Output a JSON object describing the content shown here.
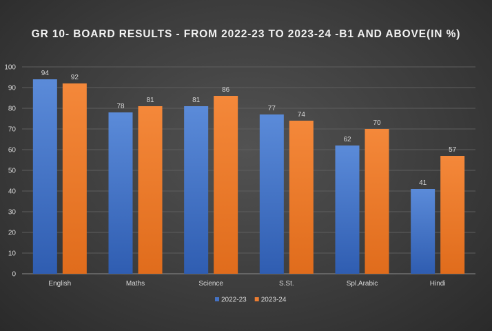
{
  "chart_data": {
    "type": "bar",
    "title": "GR 10- BOARD RESULTS - FROM 2022-23 TO 2023-24 -B1 AND ABOVE(IN %)",
    "categories": [
      "English",
      "Maths",
      "Science",
      "S.St.",
      "Spl.Arabic",
      "Hindi"
    ],
    "series": [
      {
        "name": "2022-23",
        "values": [
          94,
          78,
          81,
          77,
          62,
          41
        ],
        "color": "#4472c4"
      },
      {
        "name": "2023-24",
        "values": [
          92,
          81,
          86,
          74,
          70,
          57
        ],
        "color": "#ed7d31"
      }
    ],
    "ylim": [
      0,
      100
    ],
    "yticks": [
      0,
      10,
      20,
      30,
      40,
      50,
      60,
      70,
      80,
      90,
      100
    ],
    "xlabel": "",
    "ylabel": "",
    "grid": true,
    "legend": "bottom"
  }
}
